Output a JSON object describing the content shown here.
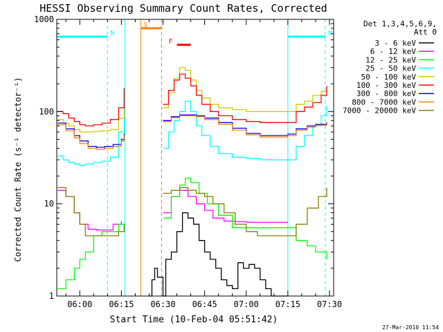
{
  "chart_data": {
    "type": "line",
    "title": "HESSI Observing Summary Count Rates, Corrected",
    "xlabel": "Start Time (10-Feb-04 05:51:42)",
    "ylabel": "Corrected Count Rate (s⁻¹ detector⁻¹)",
    "x_unit": "minutes after 06:00",
    "xlim": [
      -8.3,
      91.5
    ],
    "ylim": [
      1,
      1000
    ],
    "y_scale": "log",
    "x_ticks": [
      "06:00",
      "06:15",
      "06:30",
      "06:45",
      "07:00",
      "07:15",
      "07:30"
    ],
    "x_tick_values": [
      0,
      15,
      30,
      45,
      60,
      75,
      90
    ],
    "y_ticks": [
      "1",
      "10",
      "100",
      "1000"
    ],
    "y_tick_values": [
      1,
      10,
      100,
      1000
    ],
    "legend_header": [
      "Det 1,3,4,5,6,9,",
      "Att 0"
    ],
    "legend_position": "right",
    "grid": false,
    "series": [
      {
        "name": "3 - 6 keV",
        "color": "#000000",
        "x": [
          25,
          26,
          27,
          28,
          30,
          31,
          33,
          35,
          37,
          39,
          41,
          43,
          45,
          47,
          49,
          51,
          53,
          55,
          57,
          59,
          61,
          63,
          65,
          67,
          69,
          71,
          73,
          75
        ],
        "y": [
          1,
          1.5,
          2,
          1.6,
          1,
          2.5,
          3,
          5,
          8,
          7,
          6,
          4,
          3,
          2.5,
          2,
          1.5,
          1.3,
          1.2,
          2.3,
          2,
          2.2,
          2,
          1.5,
          1.2,
          1,
          1,
          1,
          1
        ]
      },
      {
        "name": "6 - 12 keV",
        "color": "#ff00ff",
        "x": [
          -8,
          -5,
          -2,
          0,
          3,
          6,
          9,
          12,
          15,
          30,
          33,
          36,
          39,
          42,
          45,
          48,
          52,
          56,
          60,
          64,
          68,
          72,
          75
        ],
        "y": [
          14,
          12,
          8,
          6,
          5.3,
          5.2,
          5.2,
          6,
          6.5,
          8,
          12,
          14,
          12,
          10,
          8.5,
          7,
          6.5,
          6.4,
          6.3,
          6.3,
          6.3,
          6.3,
          6.3
        ]
      },
      {
        "name": "12 - 25 keV",
        "color": "#00ff00",
        "x": [
          -8,
          -5,
          -2,
          0,
          2,
          5,
          8,
          11,
          14,
          16,
          30,
          33,
          36,
          38,
          40,
          43,
          46,
          50,
          55,
          60,
          65,
          70,
          75,
          78,
          82,
          85,
          89
        ],
        "y": [
          1.2,
          1.5,
          2,
          2.5,
          3,
          4.5,
          5,
          5,
          6,
          5.3,
          7,
          12,
          16,
          19,
          17,
          13,
          10,
          7.5,
          5.5,
          5.5,
          5.5,
          5.5,
          5.5,
          4,
          3.5,
          3,
          2.5
        ]
      },
      {
        "name": "25 - 50 keV",
        "color": "#00ffff",
        "x": [
          -8,
          -6,
          -4,
          -2,
          0,
          2,
          5,
          8,
          11,
          14,
          16,
          30,
          32,
          34,
          36,
          38,
          40,
          42,
          44,
          47,
          50,
          55,
          60,
          65,
          70,
          75,
          78,
          81,
          84,
          87,
          89
        ],
        "y": [
          33,
          30,
          28,
          27,
          26,
          27,
          28,
          29,
          32,
          60,
          120,
          40,
          60,
          80,
          100,
          130,
          100,
          70,
          55,
          42,
          35,
          32,
          31,
          30,
          30,
          30,
          42,
          55,
          70,
          90,
          115
        ]
      },
      {
        "name": "50 - 100 keV",
        "color": "#cccc00",
        "x": [
          -8,
          -6,
          -4,
          -2,
          0,
          2,
          5,
          8,
          11,
          14,
          16,
          30,
          32,
          34,
          36,
          38,
          40,
          42,
          44,
          47,
          50,
          55,
          60,
          65,
          70,
          75,
          78,
          81,
          84,
          87,
          89
        ],
        "y": [
          82,
          75,
          70,
          64,
          60,
          60,
          61,
          62,
          64,
          85,
          160,
          110,
          160,
          230,
          300,
          280,
          220,
          170,
          140,
          120,
          110,
          105,
          100,
          100,
          100,
          100,
          120,
          130,
          150,
          165,
          180
        ]
      },
      {
        "name": "100 - 300 keV",
        "color": "#ff0000",
        "x": [
          -8,
          -6,
          -4,
          -2,
          0,
          2,
          5,
          8,
          11,
          14,
          16,
          30,
          32,
          34,
          36,
          38,
          40,
          42,
          44,
          47,
          50,
          55,
          60,
          65,
          70,
          75,
          78,
          81,
          84,
          87,
          89
        ],
        "y": [
          100,
          95,
          85,
          78,
          72,
          70,
          72,
          75,
          82,
          110,
          180,
          120,
          170,
          220,
          255,
          230,
          190,
          150,
          120,
          100,
          90,
          82,
          78,
          76,
          76,
          76,
          100,
          112,
          125,
          150,
          190
        ]
      },
      {
        "name": "300 - 800 keV",
        "color": "#0000ff",
        "x": [
          -8,
          -5,
          -2,
          0,
          3,
          6,
          9,
          12,
          15,
          16,
          30,
          33,
          36,
          39,
          42,
          45,
          50,
          55,
          60,
          65,
          70,
          75,
          78,
          82,
          85,
          89
        ],
        "y": [
          75,
          65,
          55,
          48,
          42,
          41,
          42,
          44,
          50,
          58,
          80,
          88,
          92,
          92,
          90,
          85,
          76,
          66,
          58,
          55,
          55,
          57,
          65,
          70,
          73,
          76
        ]
      },
      {
        "name": "800 - 7000 keV",
        "color": "#ff8000",
        "x": [
          -8,
          -5,
          -2,
          0,
          3,
          6,
          9,
          12,
          15,
          16,
          30,
          33,
          36,
          39,
          42,
          45,
          50,
          55,
          60,
          65,
          70,
          75,
          78,
          82,
          85,
          89
        ],
        "y": [
          72,
          62,
          52,
          45,
          40,
          39,
          40,
          42,
          48,
          56,
          78,
          86,
          90,
          90,
          88,
          82,
          73,
          63,
          56,
          53,
          53,
          55,
          63,
          68,
          71,
          74
        ]
      },
      {
        "name": "7000 - 20000 keV",
        "color": "#808000",
        "x": [
          -8,
          -5,
          -2,
          0,
          2,
          5,
          8,
          11,
          14,
          16,
          30,
          33,
          36,
          39,
          42,
          45,
          48,
          52,
          56,
          60,
          64,
          68,
          72,
          75,
          78,
          82,
          86,
          89
        ],
        "y": [
          15,
          12,
          8,
          6,
          4.5,
          4.5,
          4.5,
          4.5,
          5,
          6,
          13,
          14,
          15,
          14,
          13,
          12,
          10,
          8,
          6,
          5,
          4.5,
          4.5,
          4.5,
          4.5,
          6,
          9,
          12,
          15
        ]
      }
    ],
    "annotations": [
      {
        "label": "N",
        "color": "#00ffff",
        "x_start": -8.3,
        "x_end": 10,
        "y": 650,
        "marker_x": 10
      },
      {
        "label": "N",
        "color": "#00ffff",
        "x_start": 75,
        "x_end": 88.5,
        "y": 650,
        "marker_x": 88.5
      },
      {
        "label": "S",
        "color": "#ff8000",
        "x_start": 22,
        "x_end": 29.5,
        "y": 800,
        "marker_x": 22
      },
      {
        "label": "F",
        "color": "#ff0000",
        "x_start": 35,
        "x_end": 40,
        "y": 530
      }
    ],
    "vertical_lines": [
      {
        "x": 10,
        "color": "#00ffff",
        "style": "dashed"
      },
      {
        "x": 16.3,
        "color": "#00ffff",
        "style": "solid"
      },
      {
        "x": 22,
        "color": "#ff8000",
        "style": "solid"
      },
      {
        "x": 29.5,
        "color": "#ff8000",
        "style": "dashed"
      },
      {
        "x": 75,
        "color": "#00ffff",
        "style": "solid"
      },
      {
        "x": 88.5,
        "color": "#00ffff",
        "style": "dashed"
      }
    ]
  },
  "timestamp": "27-Mar-2010 11:54"
}
